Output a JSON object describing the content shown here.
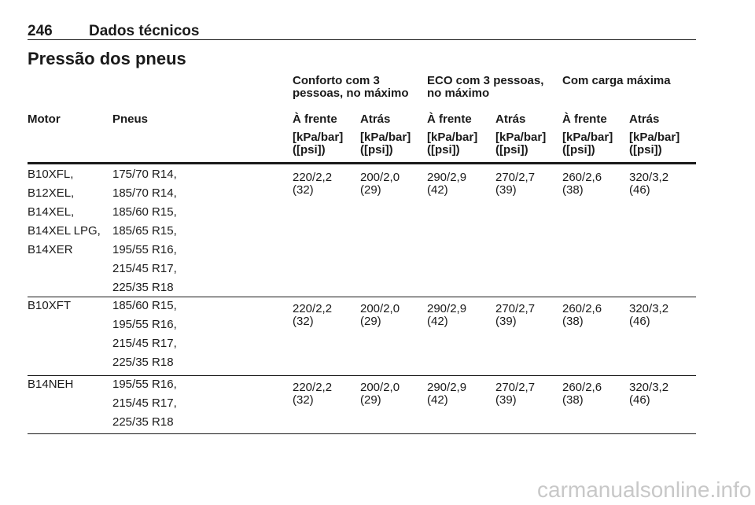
{
  "header": {
    "page_number": "246",
    "section": "Dados técnicos"
  },
  "title": "Pressão dos pneus",
  "table": {
    "group_headers": [
      "Conforto com 3 pessoas, no máximo",
      "ECO com 3 pessoas, no máximo",
      "Com carga máxima"
    ],
    "column_headers": [
      "Motor",
      "Pneus",
      "À frente",
      "Atrás",
      "À frente",
      "Atrás",
      "À frente",
      "Atrás"
    ],
    "units": [
      {
        "pressure": "[kPa/bar]",
        "psi": "([psi])"
      },
      {
        "pressure": "[kPa/bar]",
        "psi": "([psi])"
      },
      {
        "pressure": "[kPa/bar]",
        "psi": "([psi])"
      },
      {
        "pressure": "[kPa/bar]",
        "psi": "([psi])"
      },
      {
        "pressure": "[kPa/bar]",
        "psi": "([psi])"
      },
      {
        "pressure": "[kPa/bar]",
        "psi": "([psi])"
      }
    ],
    "rows": [
      {
        "motors": [
          "B10XFL,",
          "B12XEL,",
          "B14XEL,",
          "B14XEL LPG,",
          "B14XER"
        ],
        "tires": [
          "175/70 R14,",
          "185/70 R14,",
          "185/60 R15,",
          "185/65 R15,",
          "195/55 R16,",
          "215/45 R17,",
          "225/35 R18"
        ],
        "pressures": [
          {
            "pressure": "220/2,2",
            "psi": "(32)"
          },
          {
            "pressure": "200/2,0",
            "psi": "(29)"
          },
          {
            "pressure": "290/2,9",
            "psi": "(42)"
          },
          {
            "pressure": "270/2,7",
            "psi": "(39)"
          },
          {
            "pressure": "260/2,6",
            "psi": "(38)"
          },
          {
            "pressure": "320/3,2",
            "psi": "(46)"
          }
        ]
      },
      {
        "motors": [
          "B10XFT"
        ],
        "tires": [
          "185/60 R15,",
          "195/55 R16,",
          "215/45 R17,",
          "225/35 R18"
        ],
        "pressures": [
          {
            "pressure": "220/2,2",
            "psi": "(32)"
          },
          {
            "pressure": "200/2,0",
            "psi": "(29)"
          },
          {
            "pressure": "290/2,9",
            "psi": "(42)"
          },
          {
            "pressure": "270/2,7",
            "psi": "(39)"
          },
          {
            "pressure": "260/2,6",
            "psi": "(38)"
          },
          {
            "pressure": "320/3,2",
            "psi": "(46)"
          }
        ]
      },
      {
        "motors": [
          "B14NEH"
        ],
        "tires": [
          "195/55 R16,",
          "215/45 R17,",
          "225/35 R18"
        ],
        "pressures": [
          {
            "pressure": "220/2,2",
            "psi": "(32)"
          },
          {
            "pressure": "200/2,0",
            "psi": "(29)"
          },
          {
            "pressure": "290/2,9",
            "psi": "(42)"
          },
          {
            "pressure": "270/2,7",
            "psi": "(39)"
          },
          {
            "pressure": "260/2,6",
            "psi": "(38)"
          },
          {
            "pressure": "320/3,2",
            "psi": "(46)"
          }
        ]
      }
    ]
  },
  "watermark": "carmanualsonline.info"
}
